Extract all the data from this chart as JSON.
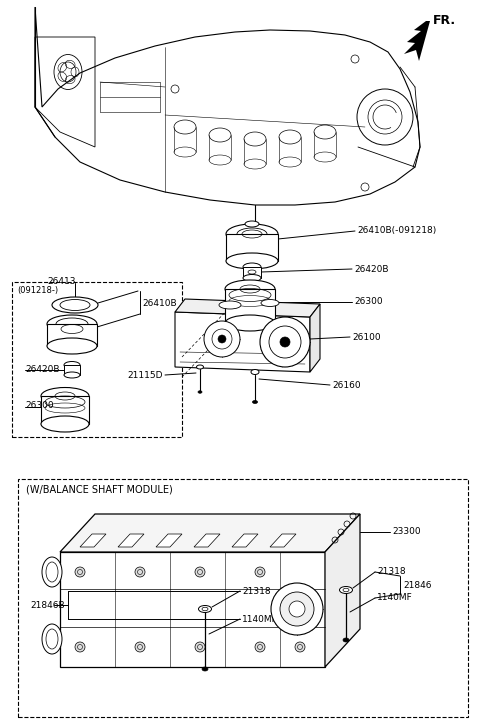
{
  "bg_color": "#ffffff",
  "lc": "#000000",
  "fs": 6.5,
  "parts": {
    "26410B_091218": "26410B(-091218)",
    "26420B": "26420B",
    "26300": "26300",
    "26100": "26100",
    "26160": "26160",
    "21115D": "21115D",
    "26413": "26413",
    "26410B": "26410B",
    "091218": "(091218-)",
    "23300": "23300",
    "21318": "21318",
    "1140MF": "1140MF",
    "21846": "21846",
    "21846B": "21846B",
    "FR": "FR."
  }
}
